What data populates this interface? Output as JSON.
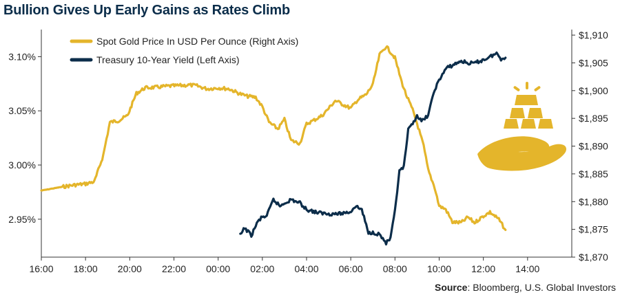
{
  "title": "Bullion Gives Up Early Gains as Rates Climb",
  "source": {
    "label": "Source",
    "text": ": Bloomberg, U.S. Global Investors"
  },
  "colors": {
    "gold": "#e4b52b",
    "yield": "#0c2d4a",
    "text": "#222222",
    "axis": "#333333"
  },
  "icon": "gold-bars-on-hand-icon",
  "chart_data": {
    "type": "line",
    "title": "Bullion Gives Up Early Gains as Rates Climb",
    "grid": false,
    "legend_position": "top-left",
    "x_ticks": [
      "18:00",
      "20:00",
      "22:00",
      "00:00",
      "02:00",
      "04:00",
      "06:00",
      "08:00",
      "10:00",
      "12:00",
      "14:00",
      "16:00"
    ],
    "x_range_hours": [
      16,
      40
    ],
    "y_left": {
      "ticks": [
        "2.95%",
        "3.00%",
        "3.05%",
        "3.10%"
      ],
      "range": [
        2.915,
        3.125
      ]
    },
    "y_right": {
      "ticks": [
        "$1,870",
        "$1,875",
        "$1,880",
        "$1,885",
        "$1,890",
        "$1,895",
        "$1,900",
        "$1,905",
        "$1,910"
      ],
      "range": [
        1870,
        1911
      ]
    },
    "series": [
      {
        "name": "Spot Gold Price In USD Per Ounce (Right Axis)",
        "axis": "right",
        "x": [
          16.0,
          17.0,
          17.5,
          18.0,
          18.4,
          18.8,
          19.1,
          19.5,
          19.9,
          20.3,
          20.7,
          21.2,
          21.7,
          22.2,
          22.7,
          23.0,
          23.5,
          24.0,
          24.5,
          25.0,
          25.3,
          25.7,
          26.0,
          26.3,
          26.7,
          27.0,
          27.3,
          27.7,
          28.0,
          28.3,
          28.7,
          29.0,
          29.3,
          29.6,
          30.0,
          30.3,
          30.7,
          31.0,
          31.3,
          31.6,
          32.0,
          32.3,
          32.5,
          32.8,
          33.0,
          33.3,
          33.5,
          33.8,
          34.0,
          34.3,
          34.6,
          35.0,
          35.3,
          35.6,
          36.0,
          36.3,
          36.7,
          37.0
        ],
        "y": [
          1882.0,
          1882.7,
          1883.0,
          1883.2,
          1883.6,
          1888.3,
          1894.3,
          1894.6,
          1895.5,
          1899.5,
          1900.5,
          1900.6,
          1900.8,
          1900.9,
          1901.0,
          1900.9,
          1900.3,
          1900.5,
          1900.3,
          1899.4,
          1899.0,
          1898.8,
          1897.1,
          1894.3,
          1893.1,
          1894.8,
          1891.0,
          1890.5,
          1894.0,
          1894.6,
          1895.5,
          1896.8,
          1898.2,
          1897.6,
          1896.8,
          1898.3,
          1899.3,
          1901.1,
          1906.4,
          1908.0,
          1905.9,
          1901.6,
          1899.3,
          1896.5,
          1894.1,
          1890.0,
          1885.7,
          1882.5,
          1879.2,
          1878.6,
          1876.3,
          1876.2,
          1877.2,
          1876.2,
          1877.4,
          1878.1,
          1876.8,
          1874.9
        ]
      },
      {
        "name": "Treasury 10-Year Yield (Left Axis)",
        "axis": "left",
        "x": [
          25.0,
          25.2,
          25.5,
          25.8,
          26.0,
          26.2,
          26.5,
          26.8,
          27.0,
          27.3,
          27.7,
          28.0,
          28.5,
          29.0,
          29.5,
          30.0,
          30.2,
          30.5,
          30.8,
          31.0,
          31.3,
          31.6,
          31.8,
          32.0,
          32.2,
          32.4,
          32.6,
          32.8,
          33.0,
          33.2,
          33.5,
          33.8,
          34.0,
          34.3,
          34.6,
          35.0,
          35.3,
          35.6,
          36.0,
          36.3,
          36.6,
          36.8,
          37.0
        ],
        "y": [
          2.935,
          2.942,
          2.935,
          2.948,
          2.952,
          2.953,
          2.968,
          2.962,
          2.965,
          2.968,
          2.965,
          2.959,
          2.956,
          2.955,
          2.955,
          2.957,
          2.962,
          2.959,
          2.937,
          2.938,
          2.936,
          2.928,
          2.932,
          2.957,
          2.994,
          2.998,
          3.032,
          3.038,
          3.046,
          3.04,
          3.046,
          3.07,
          3.078,
          3.089,
          3.092,
          3.096,
          3.094,
          3.094,
          3.097,
          3.1,
          3.103,
          3.098,
          3.099
        ]
      }
    ]
  }
}
